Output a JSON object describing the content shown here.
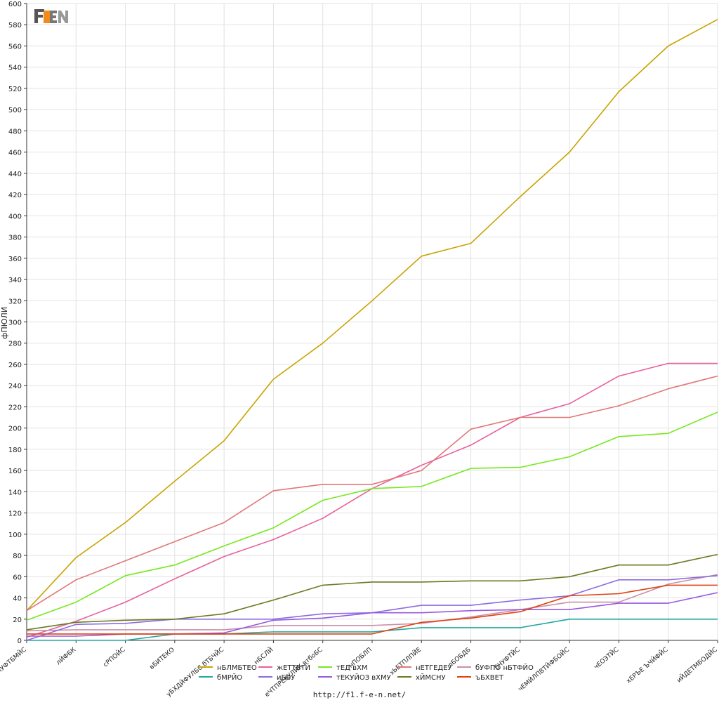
{
  "logo": {
    "text": "F1EN",
    "icon": "f1en-logo-icon"
  },
  "footer": {
    "url": "http://f1.f-e-n.net/"
  },
  "chart_data": {
    "type": "line",
    "title": "",
    "xlabel": "",
    "ylabel": "фПЮЛИ",
    "ylim": [
      0,
      600
    ],
    "ytick_step": 20,
    "grid": true,
    "legend_position": "bottom-center",
    "categories": [
      "бЧУФТБМЙС",
      "лЙФБК",
      "сРПОЙС",
      "вБИТЕКО",
      "уБХДЙФУЛБС бТБЧЙС",
      "нБСЛЙ",
      "еЧТПРЕКУЛЙК втбоБС",
      "нПОБЛП",
      "хЬЕТПЛПЙЕ",
      "лБОБДБ",
      "бЧУФТЙС",
      "чЕМЙЛПВТЙФБОЙС",
      "чЕОЗТЙС",
      "хЕРЪЕ ЪЧЙФЙС",
      "иЙДЕТМБОДЙС"
    ],
    "series": [
      {
        "name": "нБЛМБТЕО",
        "color": "#c8a400",
        "values": [
          28,
          78,
          111,
          150,
          188,
          246,
          280,
          320,
          362,
          374,
          418,
          460,
          517,
          560,
          585
        ]
      },
      {
        "name": "жЕТТБТЙ",
        "color": "#e8609c",
        "values": [
          3,
          18,
          36,
          58,
          79,
          95,
          115,
          143,
          165,
          184,
          210,
          223,
          249,
          261,
          261
        ]
      },
      {
        "name": "тЕД вХМ",
        "color": "#77e820",
        "values": [
          19,
          36,
          61,
          71,
          89,
          106,
          132,
          143,
          145,
          162,
          163,
          173,
          192,
          195,
          215
        ]
      },
      {
        "name": "нЕТГЕДЕУ",
        "color": "#e07878",
        "values": [
          28,
          57,
          75,
          93,
          111,
          141,
          147,
          147,
          160,
          199,
          210,
          210,
          221,
          237,
          249
        ]
      },
      {
        "name": "бУФПО нБТФЙО",
        "color": "#c890a8",
        "values": [
          9,
          10,
          10,
          10,
          10,
          14,
          14,
          14,
          16,
          22,
          29,
          36,
          36,
          53,
          62
        ]
      },
      {
        "name": "бМРЙО",
        "color": "#20a8a0",
        "values": [
          0,
          0,
          0,
          6,
          6,
          8,
          8,
          8,
          12,
          12,
          12,
          20,
          20,
          20,
          20
        ]
      },
      {
        "name": "иББУ",
        "color": "#8c6ce0",
        "values": [
          0,
          15,
          16,
          20,
          20,
          20,
          25,
          26,
          33,
          33,
          38,
          42,
          57,
          57,
          61
        ]
      },
      {
        "name": "тЕКУЙОЗ вХМУ",
        "color": "#9858e0",
        "values": [
          4,
          4,
          6,
          6,
          7,
          19,
          21,
          26,
          26,
          28,
          29,
          29,
          35,
          35,
          45
        ]
      },
      {
        "name": "хЙМСНУ",
        "color": "#6a7a20",
        "values": [
          10,
          17,
          19,
          20,
          25,
          38,
          52,
          55,
          55,
          56,
          56,
          60,
          71,
          71,
          81
        ]
      },
      {
        "name": "ъБХВЕТ",
        "color": "#e04010",
        "values": [
          6,
          6,
          6,
          6,
          6,
          6,
          6,
          6,
          17,
          21,
          27,
          42,
          44,
          52,
          52
        ]
      }
    ]
  }
}
